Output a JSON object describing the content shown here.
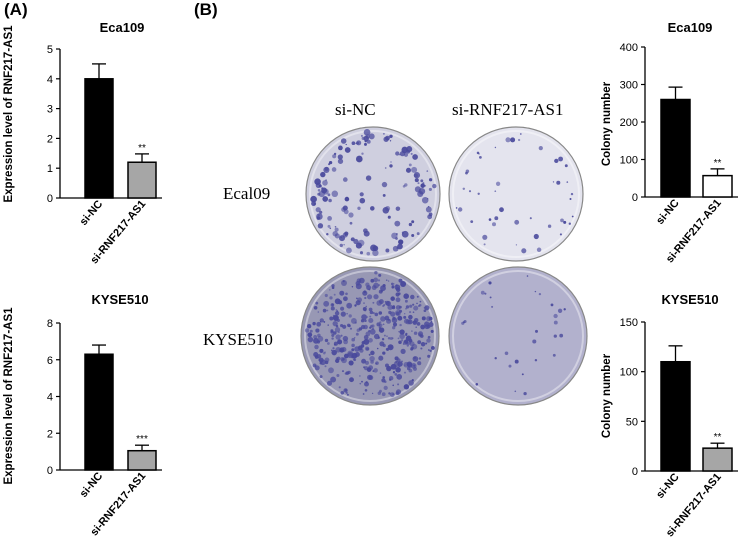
{
  "panels": {
    "a_label": "(A)",
    "b_label": "(B)"
  },
  "colony_images": {
    "col_headers": [
      "si-NC",
      "si-RNF217-AS1"
    ],
    "row_headers": [
      "Ecal09",
      "KYSE510"
    ],
    "stain_color": "#4a4a9c"
  },
  "chart_data": [
    {
      "type": "bar",
      "title": "Eca109",
      "ylabel": "Expression level of RNF217-AS1",
      "categories": [
        "si-NC",
        "si-RNF217-AS1"
      ],
      "values": [
        4.0,
        1.2
      ],
      "errors": [
        0.5,
        0.28
      ],
      "significance": [
        "",
        "**"
      ],
      "bar_colors": [
        "#000000",
        "#a6a6a6"
      ],
      "ylim": [
        0,
        5
      ],
      "yticks": [
        0,
        1,
        2,
        3,
        4,
        5
      ]
    },
    {
      "type": "bar",
      "title": "KYSE510",
      "ylabel": "Expression level of RNF217-AS1",
      "categories": [
        "si-NC",
        "si-RNF217-AS1"
      ],
      "values": [
        6.3,
        1.05
      ],
      "errors": [
        0.5,
        0.3
      ],
      "significance": [
        "",
        "***"
      ],
      "bar_colors": [
        "#000000",
        "#a6a6a6"
      ],
      "ylim": [
        0,
        8
      ],
      "yticks": [
        0,
        2,
        4,
        6,
        8
      ]
    },
    {
      "type": "bar",
      "title": "Eca109",
      "ylabel": "Colony number",
      "categories": [
        "si-NC",
        "si-RNF217-AS1"
      ],
      "values": [
        260,
        57
      ],
      "errors": [
        33,
        18
      ],
      "significance": [
        "",
        "**"
      ],
      "bar_colors": [
        "#000000",
        "#ffffff"
      ],
      "ylim": [
        0,
        400
      ],
      "yticks": [
        0,
        100,
        200,
        300,
        400
      ]
    },
    {
      "type": "bar",
      "title": "KYSE510",
      "ylabel": "Colony number",
      "categories": [
        "si-NC",
        "si-RNF217-AS1"
      ],
      "values": [
        110,
        23
      ],
      "errors": [
        16,
        5
      ],
      "significance": [
        "",
        "**"
      ],
      "bar_colors": [
        "#000000",
        "#a6a6a6"
      ],
      "ylim": [
        0,
        150
      ],
      "yticks": [
        0,
        50,
        100,
        150
      ]
    }
  ]
}
